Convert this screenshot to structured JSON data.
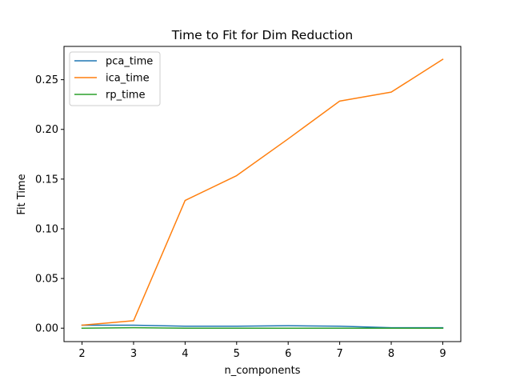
{
  "chart_data": {
    "type": "line",
    "title": "Time to Fit for Dim Reduction",
    "xlabel": "n_components",
    "ylabel": "Fit Time",
    "x": [
      2,
      3,
      4,
      5,
      6,
      7,
      8,
      9
    ],
    "xlim": [
      1.65,
      9.35
    ],
    "ylim": [
      -0.0135,
      0.2835
    ],
    "xticks": [
      "2",
      "3",
      "4",
      "5",
      "6",
      "7",
      "8",
      "9"
    ],
    "yticks": [
      "0.00",
      "0.05",
      "0.10",
      "0.15",
      "0.20",
      "0.25"
    ],
    "grid": false,
    "legend_position": "top-left",
    "series": [
      {
        "name": "pca_time",
        "color": "#1f77b4",
        "values": [
          0.003,
          0.003,
          0.002,
          0.002,
          0.0025,
          0.002,
          0.0005,
          0.0005
        ]
      },
      {
        "name": "ica_time",
        "color": "#ff7f0e",
        "values": [
          0.003,
          0.0075,
          0.1285,
          0.1535,
          0.1905,
          0.2285,
          0.2375,
          0.2705
        ]
      },
      {
        "name": "rp_time",
        "color": "#2ca02c",
        "values": [
          0.0,
          0.0005,
          0.0,
          0.0,
          0.0,
          0.0,
          0.0,
          0.0
        ]
      }
    ]
  }
}
